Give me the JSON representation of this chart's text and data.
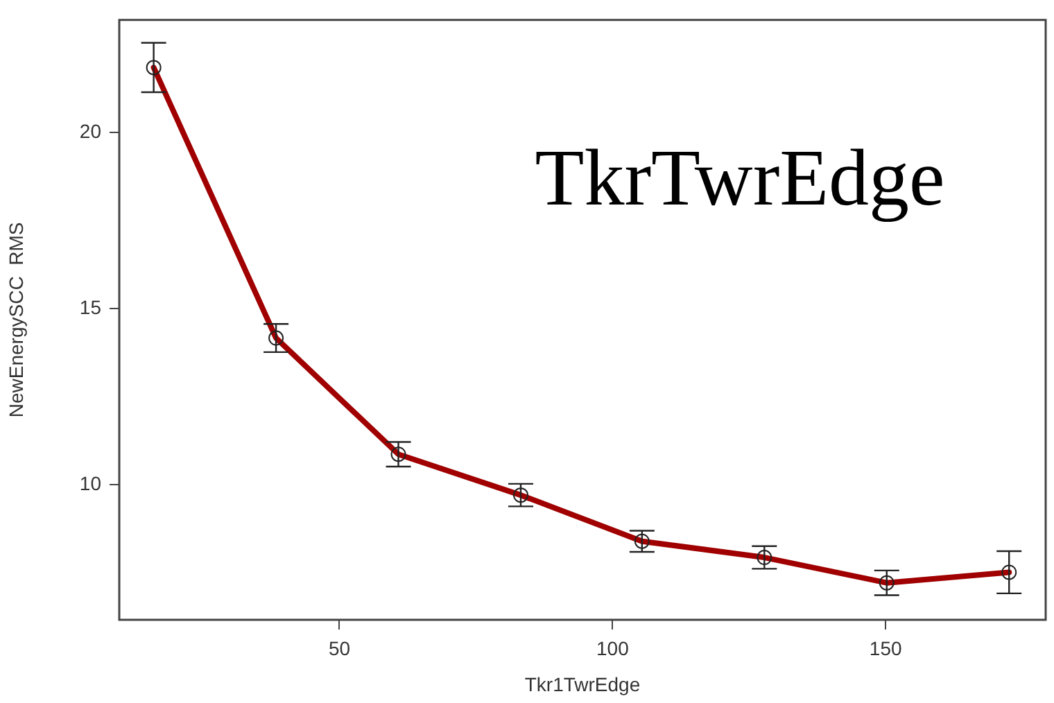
{
  "chart_data": {
    "type": "line",
    "xlabel": "Tkr1TwrEdge",
    "ylabel": "NewEnergySCC  RMS",
    "annotations": [
      "TkrTwrEdge"
    ],
    "x": [
      16,
      38.4,
      60.8,
      83.2,
      105.4,
      127.8,
      150.2,
      172.6
    ],
    "series": [
      {
        "color": "#a00000",
        "values": [
          21.85,
          14.17,
          10.87,
          9.71,
          8.4,
          7.94,
          7.22,
          7.52
        ],
        "errors": [
          0.7,
          0.4,
          0.35,
          0.32,
          0.3,
          0.32,
          0.35,
          0.6
        ]
      }
    ],
    "xlim": [
      9.7,
      179.3
    ],
    "ylim": [
      6.17,
      23.2
    ],
    "xticks": [
      50,
      100,
      150
    ],
    "yticks": [
      10,
      15,
      20
    ],
    "grid": false,
    "legend": false,
    "marker": "circle",
    "line_style": "solid"
  }
}
